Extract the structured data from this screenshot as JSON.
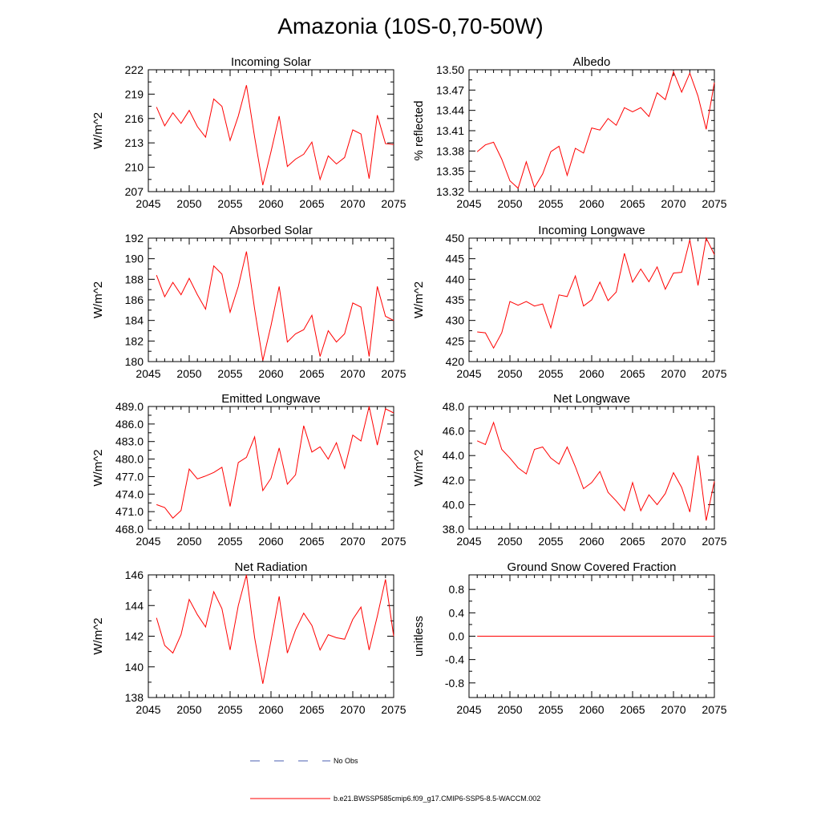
{
  "figure_title": "Amazonia (10S-0,70-50W)",
  "colors": {
    "model": "#ff0000",
    "obs": "#4a5fb0",
    "frame": "#000000"
  },
  "legend": {
    "obs_label": "No Obs",
    "model_label": "b.e21.BWSSP585cmip6.f09_g17.CMIP6-SSP5-8.5-WACCM.002"
  },
  "chart_data": [
    {
      "type": "line",
      "title": "Incoming Solar",
      "ylabel": "W/m^2",
      "xlim": [
        2045,
        2075
      ],
      "ylim": [
        207,
        222
      ],
      "x_ticks": [
        2045,
        2050,
        2055,
        2060,
        2065,
        2070,
        2075
      ],
      "x_tick_labels": [
        "2045",
        "2050",
        "2055",
        "2060",
        "2065",
        "2070",
        "2075"
      ],
      "y_ticks": [
        207,
        210,
        213,
        216,
        219,
        222
      ],
      "y_tick_labels": [
        "207",
        "210",
        "213",
        "216",
        "219",
        "222"
      ],
      "x": [
        2046,
        2047,
        2048,
        2049,
        2050,
        2051,
        2052,
        2053,
        2054,
        2055,
        2056,
        2057,
        2058,
        2059,
        2060,
        2061,
        2062,
        2063,
        2064,
        2065,
        2066,
        2067,
        2068,
        2069,
        2070,
        2071,
        2072,
        2073,
        2074,
        2075
      ],
      "values": [
        217.4,
        215.1,
        216.7,
        215.4,
        217.0,
        215.0,
        213.7,
        218.4,
        217.5,
        213.3,
        216.3,
        220.1,
        213.7,
        207.8,
        211.9,
        216.3,
        210.1,
        211.0,
        211.6,
        213.1,
        208.5,
        211.4,
        210.4,
        211.2,
        214.6,
        214.1,
        208.6,
        216.4,
        212.9,
        212.8
      ]
    },
    {
      "type": "line",
      "title": "Albedo",
      "ylabel": "% reflected",
      "xlim": [
        2045,
        2075
      ],
      "ylim": [
        13.32,
        13.5
      ],
      "x_ticks": [
        2045,
        2050,
        2055,
        2060,
        2065,
        2070,
        2075
      ],
      "x_tick_labels": [
        "2045",
        "2050",
        "2055",
        "2060",
        "2065",
        "2070",
        "2075"
      ],
      "y_ticks": [
        13.32,
        13.35,
        13.38,
        13.41,
        13.44,
        13.47,
        13.5
      ],
      "y_tick_labels": [
        "13.32",
        "13.35",
        "13.38",
        "13.41",
        "13.44",
        "13.47",
        "13.50"
      ],
      "x": [
        2046,
        2047,
        2048,
        2049,
        2050,
        2051,
        2052,
        2053,
        2054,
        2055,
        2056,
        2057,
        2058,
        2059,
        2060,
        2061,
        2062,
        2063,
        2064,
        2065,
        2066,
        2067,
        2068,
        2069,
        2070,
        2071,
        2072,
        2073,
        2074,
        2075
      ],
      "values": [
        13.379,
        13.389,
        13.393,
        13.368,
        13.336,
        13.325,
        13.364,
        13.326,
        13.346,
        13.379,
        13.387,
        13.344,
        13.384,
        13.377,
        13.414,
        13.411,
        13.428,
        13.418,
        13.444,
        13.438,
        13.444,
        13.431,
        13.466,
        13.456,
        13.497,
        13.467,
        13.495,
        13.461,
        13.412,
        13.481
      ]
    },
    {
      "type": "line",
      "title": "Absorbed Solar",
      "ylabel": "W/m^2",
      "xlim": [
        2045,
        2075
      ],
      "ylim": [
        180,
        192
      ],
      "x_ticks": [
        2045,
        2050,
        2055,
        2060,
        2065,
        2070,
        2075
      ],
      "x_tick_labels": [
        "2045",
        "2050",
        "2055",
        "2060",
        "2065",
        "2070",
        "2075"
      ],
      "y_ticks": [
        180,
        182,
        184,
        186,
        188,
        190,
        192
      ],
      "y_tick_labels": [
        "180",
        "182",
        "184",
        "186",
        "188",
        "190",
        "192"
      ],
      "x": [
        2046,
        2047,
        2048,
        2049,
        2050,
        2051,
        2052,
        2053,
        2054,
        2055,
        2056,
        2057,
        2058,
        2059,
        2060,
        2061,
        2062,
        2063,
        2064,
        2065,
        2066,
        2067,
        2068,
        2069,
        2070,
        2071,
        2072,
        2073,
        2074,
        2075
      ],
      "values": [
        188.4,
        186.3,
        187.7,
        186.5,
        188.1,
        186.5,
        185.1,
        189.3,
        188.5,
        184.8,
        187.3,
        190.7,
        185.1,
        180.1,
        183.5,
        187.3,
        181.9,
        182.7,
        183.1,
        184.5,
        180.5,
        183.0,
        181.9,
        182.7,
        185.7,
        185.3,
        180.5,
        187.3,
        184.4,
        184.0
      ]
    },
    {
      "type": "line",
      "title": "Incoming Longwave",
      "ylabel": "W/m^2",
      "xlim": [
        2045,
        2075
      ],
      "ylim": [
        420,
        450
      ],
      "x_ticks": [
        2045,
        2050,
        2055,
        2060,
        2065,
        2070,
        2075
      ],
      "x_tick_labels": [
        "2045",
        "2050",
        "2055",
        "2060",
        "2065",
        "2070",
        "2075"
      ],
      "y_ticks": [
        420,
        425,
        430,
        435,
        440,
        445,
        450
      ],
      "y_tick_labels": [
        "420",
        "425",
        "430",
        "435",
        "440",
        "445",
        "450"
      ],
      "x": [
        2046,
        2047,
        2048,
        2049,
        2050,
        2051,
        2052,
        2053,
        2054,
        2055,
        2056,
        2057,
        2058,
        2059,
        2060,
        2061,
        2062,
        2063,
        2064,
        2065,
        2066,
        2067,
        2068,
        2069,
        2070,
        2071,
        2072,
        2073,
        2074,
        2075
      ],
      "values": [
        427.2,
        427.0,
        423.3,
        427.0,
        434.6,
        433.7,
        434.6,
        433.5,
        434.0,
        428.2,
        436.2,
        435.8,
        440.8,
        433.5,
        435.0,
        439.3,
        434.8,
        436.9,
        446.3,
        439.3,
        442.5,
        439.4,
        443.0,
        437.6,
        441.5,
        441.7,
        449.6,
        438.5,
        450.0,
        446.0
      ]
    },
    {
      "type": "line",
      "title": "Emitted Longwave",
      "ylabel": "W/m^2",
      "xlim": [
        2045,
        2075
      ],
      "ylim": [
        468.0,
        489.0
      ],
      "x_ticks": [
        2045,
        2050,
        2055,
        2060,
        2065,
        2070,
        2075
      ],
      "x_tick_labels": [
        "2045",
        "2050",
        "2055",
        "2060",
        "2065",
        "2070",
        "2075"
      ],
      "y_ticks": [
        468.0,
        471.0,
        474.0,
        477.0,
        480.0,
        483.0,
        486.0,
        489.0
      ],
      "y_tick_labels": [
        "468.0",
        "471.0",
        "474.0",
        "477.0",
        "480.0",
        "483.0",
        "486.0",
        "489.0"
      ],
      "x": [
        2046,
        2047,
        2048,
        2049,
        2050,
        2051,
        2052,
        2053,
        2054,
        2055,
        2056,
        2057,
        2058,
        2059,
        2060,
        2061,
        2062,
        2063,
        2064,
        2065,
        2066,
        2067,
        2068,
        2069,
        2070,
        2071,
        2072,
        2073,
        2074,
        2075
      ],
      "values": [
        472.2,
        471.7,
        469.9,
        471.2,
        478.3,
        476.6,
        477.1,
        477.7,
        478.6,
        471.9,
        479.4,
        480.3,
        483.8,
        474.6,
        476.7,
        481.9,
        475.7,
        477.3,
        485.7,
        481.2,
        482.1,
        480.0,
        482.8,
        478.4,
        484.1,
        483.1,
        489.0,
        482.4,
        488.6,
        487.9
      ]
    },
    {
      "type": "line",
      "title": "Net Longwave",
      "ylabel": "W/m^2",
      "xlim": [
        2045,
        2075
      ],
      "ylim": [
        38.0,
        48.0
      ],
      "x_ticks": [
        2045,
        2050,
        2055,
        2060,
        2065,
        2070,
        2075
      ],
      "x_tick_labels": [
        "2045",
        "2050",
        "2055",
        "2060",
        "2065",
        "2070",
        "2075"
      ],
      "y_ticks": [
        38.0,
        40.0,
        42.0,
        44.0,
        46.0,
        48.0
      ],
      "y_tick_labels": [
        "38.0",
        "40.0",
        "42.0",
        "44.0",
        "46.0",
        "48.0"
      ],
      "x": [
        2046,
        2047,
        2048,
        2049,
        2050,
        2051,
        2052,
        2053,
        2054,
        2055,
        2056,
        2057,
        2058,
        2059,
        2060,
        2061,
        2062,
        2063,
        2064,
        2065,
        2066,
        2067,
        2068,
        2069,
        2070,
        2071,
        2072,
        2073,
        2074,
        2075
      ],
      "values": [
        45.2,
        44.9,
        46.7,
        44.5,
        43.8,
        43.0,
        42.5,
        44.5,
        44.7,
        43.8,
        43.3,
        44.7,
        43.1,
        41.3,
        41.8,
        42.7,
        41.0,
        40.3,
        39.5,
        41.8,
        39.5,
        40.8,
        40.0,
        40.9,
        42.6,
        41.4,
        39.4,
        44.0,
        38.7,
        41.9
      ]
    },
    {
      "type": "line",
      "title": "Net Radiation",
      "ylabel": "W/m^2",
      "xlim": [
        2045,
        2075
      ],
      "ylim": [
        138,
        146
      ],
      "x_ticks": [
        2045,
        2050,
        2055,
        2060,
        2065,
        2070,
        2075
      ],
      "x_tick_labels": [
        "2045",
        "2050",
        "2055",
        "2060",
        "2065",
        "2070",
        "2075"
      ],
      "y_ticks": [
        138,
        140,
        142,
        144,
        146
      ],
      "y_tick_labels": [
        "138",
        "140",
        "142",
        "144",
        "146"
      ],
      "x": [
        2046,
        2047,
        2048,
        2049,
        2050,
        2051,
        2052,
        2053,
        2054,
        2055,
        2056,
        2057,
        2058,
        2059,
        2060,
        2061,
        2062,
        2063,
        2064,
        2065,
        2066,
        2067,
        2068,
        2069,
        2070,
        2071,
        2072,
        2073,
        2074,
        2075
      ],
      "values": [
        143.2,
        141.4,
        140.9,
        142.1,
        144.4,
        143.4,
        142.6,
        144.9,
        143.8,
        141.1,
        144.0,
        146.0,
        141.9,
        138.9,
        141.7,
        144.6,
        140.9,
        142.4,
        143.5,
        142.7,
        141.1,
        142.1,
        141.9,
        141.8,
        143.1,
        143.9,
        141.1,
        143.3,
        145.7,
        142.0
      ]
    },
    {
      "type": "line",
      "title": "Ground Snow Covered Fraction",
      "ylabel": "unitless",
      "xlim": [
        2045,
        2075
      ],
      "ylim": [
        -1.05,
        1.05
      ],
      "x_ticks": [
        2045,
        2050,
        2055,
        2060,
        2065,
        2070,
        2075
      ],
      "x_tick_labels": [
        "2045",
        "2050",
        "2055",
        "2060",
        "2065",
        "2070",
        "2075"
      ],
      "y_ticks": [
        -0.8,
        -0.4,
        0.0,
        0.4,
        0.8
      ],
      "y_tick_labels": [
        "-0.8",
        "-0.4",
        "0.0",
        "0.4",
        "0.8"
      ],
      "x": [
        2046,
        2047,
        2048,
        2049,
        2050,
        2051,
        2052,
        2053,
        2054,
        2055,
        2056,
        2057,
        2058,
        2059,
        2060,
        2061,
        2062,
        2063,
        2064,
        2065,
        2066,
        2067,
        2068,
        2069,
        2070,
        2071,
        2072,
        2073,
        2074,
        2075
      ],
      "values": [
        0,
        0,
        0,
        0,
        0,
        0,
        0,
        0,
        0,
        0,
        0,
        0,
        0,
        0,
        0,
        0,
        0,
        0,
        0,
        0,
        0,
        0,
        0,
        0,
        0,
        0,
        0,
        0,
        0,
        0
      ]
    }
  ]
}
